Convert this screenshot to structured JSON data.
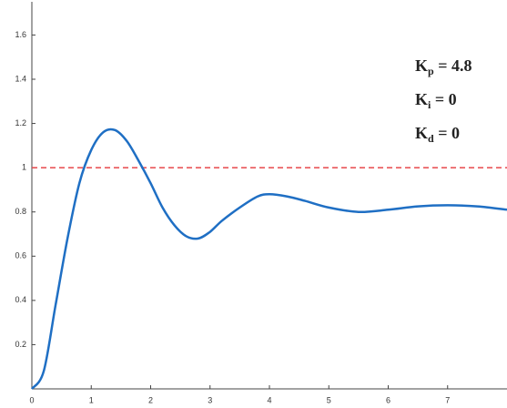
{
  "chart_data": {
    "type": "line",
    "x": [
      0,
      0.2,
      0.4,
      0.6,
      0.8,
      1.0,
      1.2,
      1.4,
      1.6,
      1.8,
      2.0,
      2.2,
      2.4,
      2.6,
      2.8,
      3.0,
      3.2,
      3.5,
      3.8,
      4.0,
      4.3,
      4.6,
      5.0,
      5.5,
      6.0,
      6.5,
      7.0,
      7.5,
      8.0
    ],
    "series": [
      {
        "color": "#1f6fc4",
        "values": [
          0,
          0.08,
          0.38,
          0.68,
          0.93,
          1.08,
          1.16,
          1.17,
          1.12,
          1.03,
          0.93,
          0.82,
          0.74,
          0.69,
          0.68,
          0.71,
          0.76,
          0.82,
          0.87,
          0.88,
          0.87,
          0.85,
          0.82,
          0.8,
          0.81,
          0.825,
          0.83,
          0.825,
          0.81
        ]
      }
    ],
    "reference_line": {
      "value": 1,
      "color": "#e8474b"
    },
    "xlim": [
      0,
      8
    ],
    "ylim": [
      0,
      1.75
    ],
    "xticks": [
      0,
      1,
      2,
      3,
      4,
      5,
      6,
      7
    ],
    "yticks": [
      0.2,
      0.4,
      0.6,
      0.8,
      1,
      1.2,
      1.4,
      1.6
    ],
    "annotations": [
      {
        "base": "K",
        "sub": "p",
        "rest": " = 4.8"
      },
      {
        "base": "K",
        "sub": "i",
        "rest": " = 0"
      },
      {
        "base": "K",
        "sub": "d",
        "rest": " = 0"
      }
    ]
  }
}
